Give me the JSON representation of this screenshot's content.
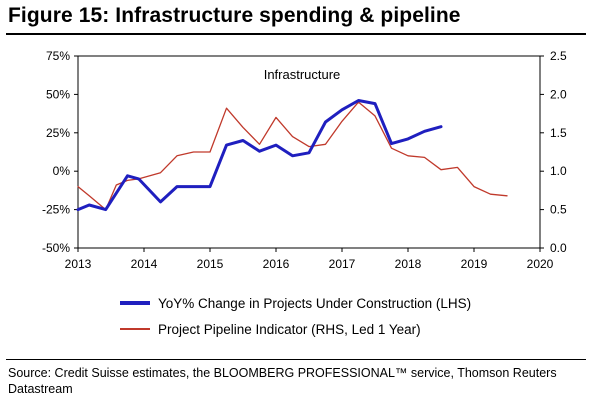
{
  "figure": {
    "title": "Figure 15: Infrastructure spending & pipeline",
    "source": "Source: Credit Suisse estimates, the BLOOMBERG PROFESSIONAL™ service, Thomson Reuters Datastream"
  },
  "chart_data": {
    "type": "line",
    "title": "Infrastructure",
    "grid": false,
    "legend_position": "bottom",
    "x_range": [
      2013,
      2020
    ],
    "x_ticks": [
      "2013",
      "2014",
      "2015",
      "2016",
      "2017",
      "2018",
      "2019",
      "2020"
    ],
    "y_left": {
      "range": [
        -50,
        75
      ],
      "ticks": [
        "-50%",
        "-25%",
        "0%",
        "25%",
        "50%",
        "75%"
      ],
      "tick_values": [
        -50,
        -25,
        0,
        25,
        50,
        75
      ]
    },
    "y_right": {
      "range": [
        0.0,
        2.5
      ],
      "ticks": [
        "0.0",
        "0.5",
        "1.0",
        "1.5",
        "2.0",
        "2.5"
      ],
      "tick_values": [
        0.0,
        0.5,
        1.0,
        1.5,
        2.0,
        2.5
      ]
    },
    "series": [
      {
        "name": "YoY% Change in Projects Under Construction (LHS)",
        "axis": "left",
        "color": "#1f1fbf",
        "x": [
          2013.0,
          2013.17,
          2013.42,
          2013.75,
          2013.92,
          2014.25,
          2014.5,
          2014.75,
          2015.0,
          2015.25,
          2015.5,
          2015.75,
          2016.0,
          2016.25,
          2016.5,
          2016.75,
          2017.0,
          2017.25,
          2017.5,
          2017.75,
          2018.0,
          2018.25,
          2018.5
        ],
        "y": [
          -25,
          -22,
          -25,
          -3,
          -5,
          -20,
          -10,
          -10,
          -10,
          17,
          20,
          13,
          17,
          10,
          12,
          32,
          40,
          46,
          44,
          18,
          21,
          26,
          29
        ]
      },
      {
        "name": "Project Pipeline Indicator (RHS, Led 1 Year)",
        "axis": "right",
        "color": "#c0392b",
        "x": [
          2013.0,
          2013.17,
          2013.42,
          2013.58,
          2013.75,
          2013.92,
          2014.25,
          2014.5,
          2014.75,
          2015.0,
          2015.25,
          2015.5,
          2015.75,
          2016.0,
          2016.25,
          2016.5,
          2016.75,
          2017.0,
          2017.25,
          2017.5,
          2017.75,
          2018.0,
          2018.25,
          2018.5,
          2018.75,
          2019.0,
          2019.25,
          2019.5
        ],
        "y": [
          0.8,
          0.68,
          0.5,
          0.82,
          0.88,
          0.9,
          0.98,
          1.2,
          1.25,
          1.25,
          1.82,
          1.57,
          1.35,
          1.7,
          1.45,
          1.32,
          1.35,
          1.65,
          1.9,
          1.72,
          1.3,
          1.2,
          1.18,
          1.02,
          1.05,
          0.8,
          0.7,
          0.68
        ]
      }
    ]
  }
}
